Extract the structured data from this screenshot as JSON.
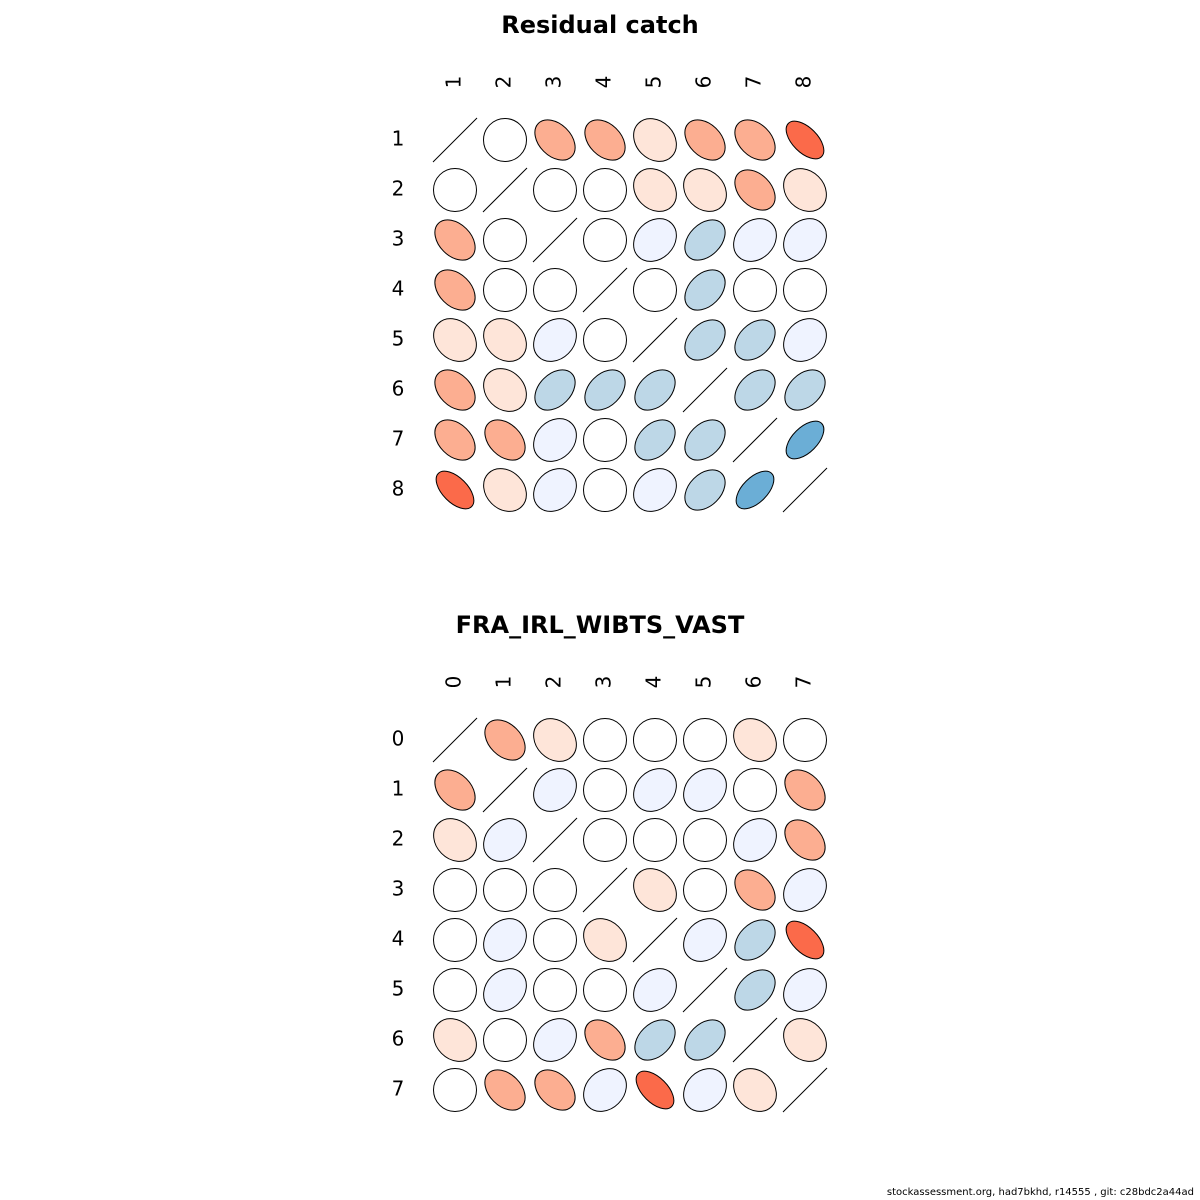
{
  "footer": "stockassessment.org, had7bkhd, r14555 , git: c28bdc2a44ad",
  "colors": {
    "-3": "#6baed6",
    "-2": "#bdd7e7",
    "-1": "#eff3ff",
    "0": "#ffffff",
    "1": "#fee5d9",
    "2": "#fcae91",
    "3": "#fb6a4a"
  },
  "chart_data": [
    {
      "type": "heatmap",
      "title": "Residual catch",
      "labels": [
        "1",
        "2",
        "3",
        "4",
        "5",
        "6",
        "7",
        "8"
      ],
      "matrix": [
        [
          null,
          0,
          2,
          2,
          1,
          2,
          2,
          3
        ],
        [
          0,
          null,
          0,
          0,
          1,
          1,
          2,
          1
        ],
        [
          2,
          0,
          null,
          0,
          -1,
          -2,
          -1,
          -1
        ],
        [
          2,
          0,
          0,
          null,
          0,
          -2,
          0,
          0
        ],
        [
          1,
          1,
          -1,
          0,
          null,
          -2,
          -2,
          -1
        ],
        [
          2,
          1,
          -2,
          -2,
          -2,
          null,
          -2,
          -2
        ],
        [
          2,
          2,
          -1,
          0,
          -2,
          -2,
          null,
          -3
        ],
        [
          3,
          1,
          -1,
          0,
          -1,
          -2,
          -3,
          null
        ]
      ]
    },
    {
      "type": "heatmap",
      "title": "FRA_IRL_WIBTS_VAST",
      "labels": [
        "0",
        "1",
        "2",
        "3",
        "4",
        "5",
        "6",
        "7"
      ],
      "matrix": [
        [
          null,
          2,
          1,
          0,
          0,
          0,
          1,
          0
        ],
        [
          2,
          null,
          -1,
          0,
          -1,
          -1,
          0,
          2
        ],
        [
          1,
          -1,
          null,
          0,
          0,
          0,
          -1,
          2
        ],
        [
          0,
          0,
          0,
          null,
          1,
          0,
          2,
          -1
        ],
        [
          0,
          -1,
          0,
          1,
          null,
          -1,
          -2,
          3
        ],
        [
          0,
          -1,
          0,
          0,
          -1,
          null,
          -2,
          -1
        ],
        [
          1,
          0,
          -1,
          2,
          -2,
          -2,
          null,
          1
        ],
        [
          0,
          2,
          2,
          -1,
          3,
          -1,
          1,
          null
        ]
      ]
    }
  ]
}
